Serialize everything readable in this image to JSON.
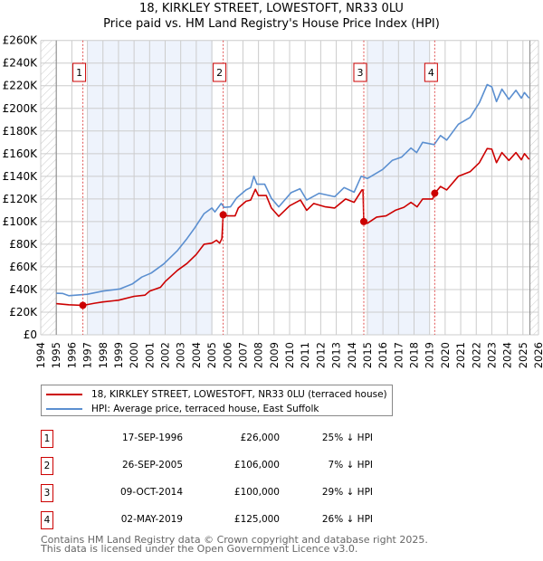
{
  "title": "18, KIRKLEY STREET, LOWESTOFT, NR33 0LU",
  "subtitle": "Price paid vs. HM Land Registry's House Price Index (HPI)",
  "colors": {
    "price": "#cc0000",
    "hpi": "#5b8fd0",
    "shade": "#eef3fc",
    "grid": "#cccccc"
  },
  "chart_data": {
    "type": "line",
    "title": "18, KIRKLEY STREET, LOWESTOFT, NR33 0LU — Price paid vs. HM Land Registry's House Price Index (HPI)",
    "xlim": [
      1994,
      2026
    ],
    "ylim": [
      0,
      260000
    ],
    "x_ticks": [
      "1994",
      "1995",
      "1996",
      "1997",
      "1998",
      "1999",
      "2000",
      "2001",
      "2002",
      "2003",
      "2004",
      "2005",
      "2006",
      "2007",
      "2008",
      "2009",
      "2010",
      "2011",
      "2012",
      "2013",
      "2014",
      "2015",
      "2016",
      "2017",
      "2018",
      "2019",
      "2020",
      "2021",
      "2022",
      "2023",
      "2024",
      "2025",
      "2026"
    ],
    "y_ticks": [
      {
        "v": 0,
        "label": "£0"
      },
      {
        "v": 20000,
        "label": "£20K"
      },
      {
        "v": 40000,
        "label": "£40K"
      },
      {
        "v": 60000,
        "label": "£60K"
      },
      {
        "v": 80000,
        "label": "£80K"
      },
      {
        "v": 100000,
        "label": "£100K"
      },
      {
        "v": 120000,
        "label": "£120K"
      },
      {
        "v": 140000,
        "label": "£140K"
      },
      {
        "v": 160000,
        "label": "£160K"
      },
      {
        "v": 180000,
        "label": "£180K"
      },
      {
        "v": 200000,
        "label": "£200K"
      },
      {
        "v": 220000,
        "label": "£220K"
      },
      {
        "v": 240000,
        "label": "£240K"
      },
      {
        "v": 260000,
        "label": "£260K"
      }
    ],
    "grid": true,
    "shaded_ranges": [
      [
        1997.0,
        2005.05
      ],
      [
        2015.0,
        2019.0
      ]
    ],
    "hatched_ranges": [
      [
        1994,
        1995
      ],
      [
        2025.45,
        2026
      ]
    ],
    "series": [
      {
        "name": "18, KIRKLEY STREET, LOWESTOFT, NR33 0LU (terraced house)",
        "color": "#cc0000",
        "points": [
          [
            1995.0,
            27500
          ],
          [
            1995.8,
            26500
          ],
          [
            1996.71,
            26000
          ],
          [
            1997.5,
            28000
          ],
          [
            1998.0,
            29000
          ],
          [
            1999.0,
            30500
          ],
          [
            2000.0,
            34000
          ],
          [
            2000.7,
            35000
          ],
          [
            2001.0,
            38500
          ],
          [
            2001.7,
            42000
          ],
          [
            2002.0,
            47000
          ],
          [
            2002.8,
            57000
          ],
          [
            2003.4,
            63000
          ],
          [
            2004.0,
            71000
          ],
          [
            2004.5,
            80000
          ],
          [
            2005.0,
            81000
          ],
          [
            2005.3,
            83500
          ],
          [
            2005.5,
            81000
          ],
          [
            2005.65,
            85000
          ],
          [
            2005.73,
            106000
          ],
          [
            2006.0,
            105000
          ],
          [
            2006.5,
            105000
          ],
          [
            2006.7,
            112000
          ],
          [
            2007.2,
            118000
          ],
          [
            2007.5,
            119000
          ],
          [
            2007.8,
            128500
          ],
          [
            2008.0,
            123000
          ],
          [
            2008.5,
            123000
          ],
          [
            2008.83,
            112000
          ],
          [
            2009.3,
            104600
          ],
          [
            2010.0,
            114000
          ],
          [
            2010.7,
            119000
          ],
          [
            2011.1,
            110000
          ],
          [
            2011.55,
            116000
          ],
          [
            2012.3,
            113000
          ],
          [
            2012.9,
            112000
          ],
          [
            2013.6,
            120000
          ],
          [
            2014.15,
            117000
          ],
          [
            2014.65,
            128000
          ],
          [
            2014.72,
            128000
          ],
          [
            2014.77,
            100000
          ],
          [
            2015.0,
            98500
          ],
          [
            2015.6,
            104000
          ],
          [
            2016.2,
            105000
          ],
          [
            2016.8,
            110000
          ],
          [
            2017.35,
            112600
          ],
          [
            2017.8,
            117000
          ],
          [
            2018.2,
            113000
          ],
          [
            2018.55,
            120000
          ],
          [
            2019.2,
            120000
          ],
          [
            2019.33,
            125000
          ],
          [
            2019.7,
            131000
          ],
          [
            2020.1,
            128000
          ],
          [
            2020.85,
            140000
          ],
          [
            2021.6,
            144000
          ],
          [
            2022.2,
            152000
          ],
          [
            2022.7,
            164500
          ],
          [
            2023.0,
            164000
          ],
          [
            2023.3,
            152000
          ],
          [
            2023.65,
            161000
          ],
          [
            2024.1,
            154000
          ],
          [
            2024.55,
            161000
          ],
          [
            2024.9,
            154600
          ],
          [
            2025.1,
            160000
          ],
          [
            2025.4,
            155000
          ]
        ]
      },
      {
        "name": "HPI: Average price, terraced house, East Suffolk",
        "color": "#5b8fd0",
        "points": [
          [
            1995.0,
            36700
          ],
          [
            1995.4,
            36500
          ],
          [
            1995.8,
            34500
          ],
          [
            1997.0,
            35800
          ],
          [
            1998.0,
            38600
          ],
          [
            1999.1,
            40500
          ],
          [
            1999.9,
            45000
          ],
          [
            2000.5,
            51000
          ],
          [
            2001.1,
            54500
          ],
          [
            2001.9,
            62500
          ],
          [
            2002.8,
            74500
          ],
          [
            2003.4,
            85000
          ],
          [
            2003.9,
            94500
          ],
          [
            2004.5,
            107000
          ],
          [
            2005.0,
            112000
          ],
          [
            2005.2,
            108500
          ],
          [
            2005.6,
            116000
          ],
          [
            2005.8,
            112500
          ],
          [
            2006.2,
            113000
          ],
          [
            2006.6,
            121000
          ],
          [
            2007.2,
            128000
          ],
          [
            2007.5,
            130000
          ],
          [
            2007.7,
            140000
          ],
          [
            2007.9,
            133000
          ],
          [
            2008.4,
            133000
          ],
          [
            2008.83,
            120500
          ],
          [
            2009.3,
            113000
          ],
          [
            2010.1,
            125600
          ],
          [
            2010.67,
            129000
          ],
          [
            2011.1,
            119000
          ],
          [
            2011.9,
            125000
          ],
          [
            2012.9,
            122000
          ],
          [
            2013.5,
            130000
          ],
          [
            2014.15,
            126000
          ],
          [
            2014.6,
            140000
          ],
          [
            2015.0,
            138000
          ],
          [
            2015.98,
            146000
          ],
          [
            2016.6,
            154000
          ],
          [
            2017.2,
            157000
          ],
          [
            2017.8,
            165000
          ],
          [
            2018.17,
            161000
          ],
          [
            2018.55,
            170000
          ],
          [
            2019.3,
            168000
          ],
          [
            2019.7,
            176000
          ],
          [
            2020.1,
            172000
          ],
          [
            2020.85,
            186000
          ],
          [
            2021.6,
            192000
          ],
          [
            2022.2,
            205000
          ],
          [
            2022.7,
            221000
          ],
          [
            2023.0,
            219000
          ],
          [
            2023.3,
            206000
          ],
          [
            2023.65,
            217000
          ],
          [
            2024.1,
            208000
          ],
          [
            2024.55,
            216000
          ],
          [
            2024.9,
            209000
          ],
          [
            2025.1,
            214000
          ],
          [
            2025.4,
            209000
          ]
        ]
      }
    ],
    "sales": [
      {
        "num": "1",
        "x": 1996.71,
        "price": 26000
      },
      {
        "num": "2",
        "x": 2005.73,
        "price": 106000
      },
      {
        "num": "3",
        "x": 2014.77,
        "price": 100000
      },
      {
        "num": "4",
        "x": 2019.33,
        "price": 125000
      }
    ]
  },
  "legend": {
    "price_label": "18, KIRKLEY STREET, LOWESTOFT, NR33 0LU (terraced house)",
    "hpi_label": "HPI: Average price, terraced house, East Suffolk"
  },
  "table": [
    {
      "num": "1",
      "date": "17-SEP-1996",
      "price": "£26,000",
      "pct": "25% ↓ HPI"
    },
    {
      "num": "2",
      "date": "26-SEP-2005",
      "price": "£106,000",
      "pct": "7% ↓ HPI"
    },
    {
      "num": "3",
      "date": "09-OCT-2014",
      "price": "£100,000",
      "pct": "29% ↓ HPI"
    },
    {
      "num": "4",
      "date": "02-MAY-2019",
      "price": "£125,000",
      "pct": "26% ↓ HPI"
    }
  ],
  "footer": {
    "line1": "Contains HM Land Registry data © Crown copyright and database right 2025.",
    "line2": "This data is licensed under the Open Government Licence v3.0."
  }
}
